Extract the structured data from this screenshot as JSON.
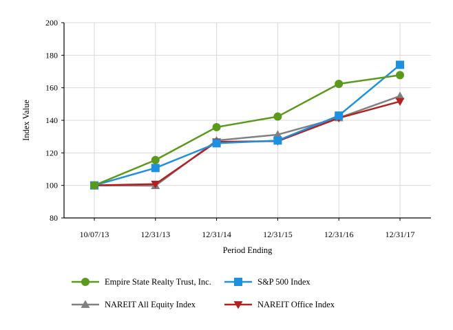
{
  "chart_data": {
    "type": "line",
    "title": "",
    "xlabel": "Period Ending",
    "ylabel": "Index Value",
    "categories": [
      "10/07/13",
      "12/31/13",
      "12/31/14",
      "12/31/15",
      "12/31/16",
      "12/31/17"
    ],
    "ylim": [
      80,
      200
    ],
    "yticks": [
      80,
      100,
      120,
      140,
      160,
      180,
      200
    ],
    "grid": true,
    "legend_position": "bottom",
    "series": [
      {
        "name": "Empire State Realty Trust, Inc.",
        "color": "#5a9a1a",
        "marker": "circle",
        "values": [
          100,
          115.6,
          135.8,
          142.3,
          162.4,
          167.8
        ]
      },
      {
        "name": "S&P 500 Index",
        "color": "#1e90e0",
        "marker": "square",
        "values": [
          100,
          110.7,
          125.9,
          127.6,
          142.9,
          174.1
        ]
      },
      {
        "name": "NAREIT All Equity Index",
        "color": "#808080",
        "marker": "triangle-up",
        "values": [
          100,
          99.8,
          127.6,
          131.2,
          141.5,
          154.9
        ]
      },
      {
        "name": "NAREIT Office Index",
        "color": "#b22020",
        "marker": "triangle-down",
        "values": [
          100,
          100.8,
          126.8,
          127.2,
          141.4,
          151.6
        ]
      }
    ]
  }
}
